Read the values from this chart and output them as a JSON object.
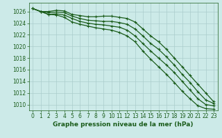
{
  "title": "Graphe pression niveau de la mer (hPa)",
  "background_color": "#cceae8",
  "grid_color": "#aacccc",
  "line_color": "#1a5c1a",
  "xlim": [
    -0.5,
    23.5
  ],
  "ylim": [
    1009.0,
    1027.5
  ],
  "yticks": [
    1010,
    1012,
    1014,
    1016,
    1018,
    1020,
    1022,
    1024,
    1026
  ],
  "xticks": [
    0,
    1,
    2,
    3,
    4,
    5,
    6,
    7,
    8,
    9,
    10,
    11,
    12,
    13,
    14,
    15,
    16,
    17,
    18,
    19,
    20,
    21,
    22,
    23
  ],
  "series": [
    [
      1026.5,
      1026.0,
      1026.0,
      1026.2,
      1026.1,
      1025.5,
      1025.3,
      1025.1,
      1025.1,
      1025.2,
      1025.2,
      1025.0,
      1024.8,
      1024.2,
      1023.0,
      1021.8,
      1020.8,
      1019.5,
      1018.0,
      1016.5,
      1015.0,
      1013.5,
      1012.0,
      1010.5
    ],
    [
      1026.5,
      1026.0,
      1025.8,
      1025.9,
      1025.8,
      1025.2,
      1024.8,
      1024.5,
      1024.4,
      1024.3,
      1024.3,
      1024.1,
      1023.8,
      1023.0,
      1021.8,
      1020.5,
      1019.5,
      1018.2,
      1016.8,
      1015.2,
      1013.8,
      1012.2,
      1010.8,
      1010.2
    ],
    [
      1026.5,
      1026.0,
      1025.5,
      1025.6,
      1025.4,
      1024.8,
      1024.3,
      1024.0,
      1023.8,
      1023.7,
      1023.5,
      1023.3,
      1022.8,
      1021.8,
      1020.5,
      1019.2,
      1018.0,
      1016.8,
      1015.5,
      1014.0,
      1012.5,
      1011.0,
      1010.0,
      1009.8
    ],
    [
      1026.5,
      1026.0,
      1025.5,
      1025.4,
      1025.0,
      1024.2,
      1023.8,
      1023.5,
      1023.2,
      1023.0,
      1022.8,
      1022.4,
      1021.8,
      1020.8,
      1019.2,
      1017.8,
      1016.5,
      1015.2,
      1013.8,
      1012.3,
      1011.0,
      1009.8,
      1009.3,
      1009.2
    ]
  ],
  "title_fontsize": 6.5,
  "tick_fontsize": 5.5
}
